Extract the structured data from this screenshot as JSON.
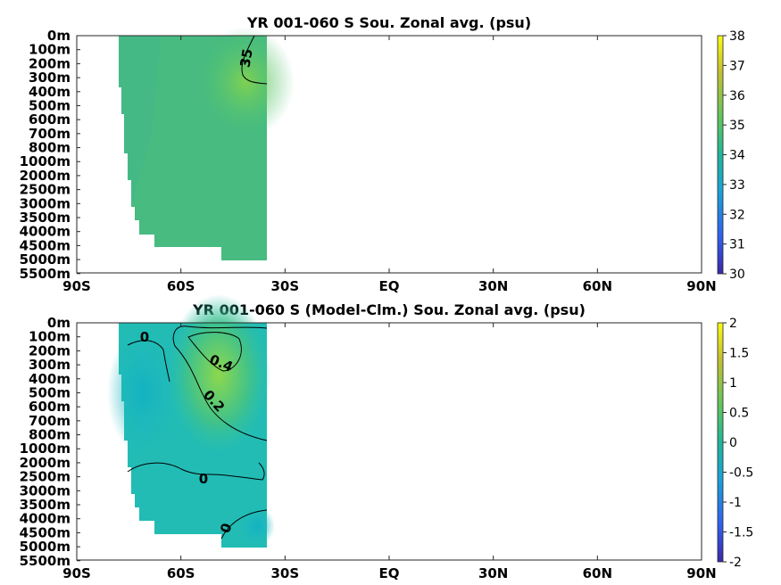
{
  "chart_data": [
    {
      "type": "heatmap",
      "title": "YR 001-060 S Sou. Zonal avg. (psu)",
      "x_ticks": [
        "90S",
        "60S",
        "30S",
        "EQ",
        "30N",
        "60N",
        "90N"
      ],
      "x_values": [
        -90,
        -60,
        -30,
        0,
        30,
        60,
        90
      ],
      "xlim": [
        -90,
        90
      ],
      "y_ticks": [
        "0m",
        "100m",
        "200m",
        "300m",
        "400m",
        "500m",
        "600m",
        "700m",
        "800m",
        "1000m",
        "2000m",
        "2500m",
        "3000m",
        "3500m",
        "4000m",
        "4500m",
        "5000m",
        "5500m"
      ],
      "colorbar": {
        "min": 30,
        "max": 38,
        "ticks": [
          "38",
          "37",
          "36",
          "35",
          "34",
          "33",
          "32",
          "31",
          "30"
        ]
      },
      "data_extent_lat": [
        -78,
        -35
      ],
      "contour_labels": [
        "35"
      ],
      "grid": false,
      "colors": {
        "low": "#3e9c8e",
        "mid": "#43b97a",
        "high": "#8ed44a"
      }
    },
    {
      "type": "heatmap",
      "title": "YR 001-060 S (Model-Clm.) Sou. Zonal avg. (psu)",
      "x_ticks": [
        "90S",
        "60S",
        "30S",
        "EQ",
        "30N",
        "60N",
        "90N"
      ],
      "x_values": [
        -90,
        -60,
        -30,
        0,
        30,
        60,
        90
      ],
      "xlim": [
        -90,
        90
      ],
      "y_ticks": [
        "0m",
        "100m",
        "200m",
        "300m",
        "400m",
        "500m",
        "600m",
        "700m",
        "800m",
        "1000m",
        "2000m",
        "2500m",
        "3000m",
        "3500m",
        "4000m",
        "4500m",
        "5000m",
        "5500m"
      ],
      "colorbar": {
        "min": -2,
        "max": 2,
        "ticks": [
          "2",
          "1.5",
          "1",
          "0.5",
          "0",
          "-0.5",
          "-1",
          "-1.5",
          "-2"
        ]
      },
      "data_extent_lat": [
        -78,
        -35
      ],
      "contour_labels": [
        "0",
        "0.4",
        "0.2",
        "0",
        "0"
      ],
      "grid": false,
      "colors": {
        "low": "#1eb5bf",
        "mid": "#2ac3a6",
        "high": "#8cd64a"
      }
    }
  ]
}
